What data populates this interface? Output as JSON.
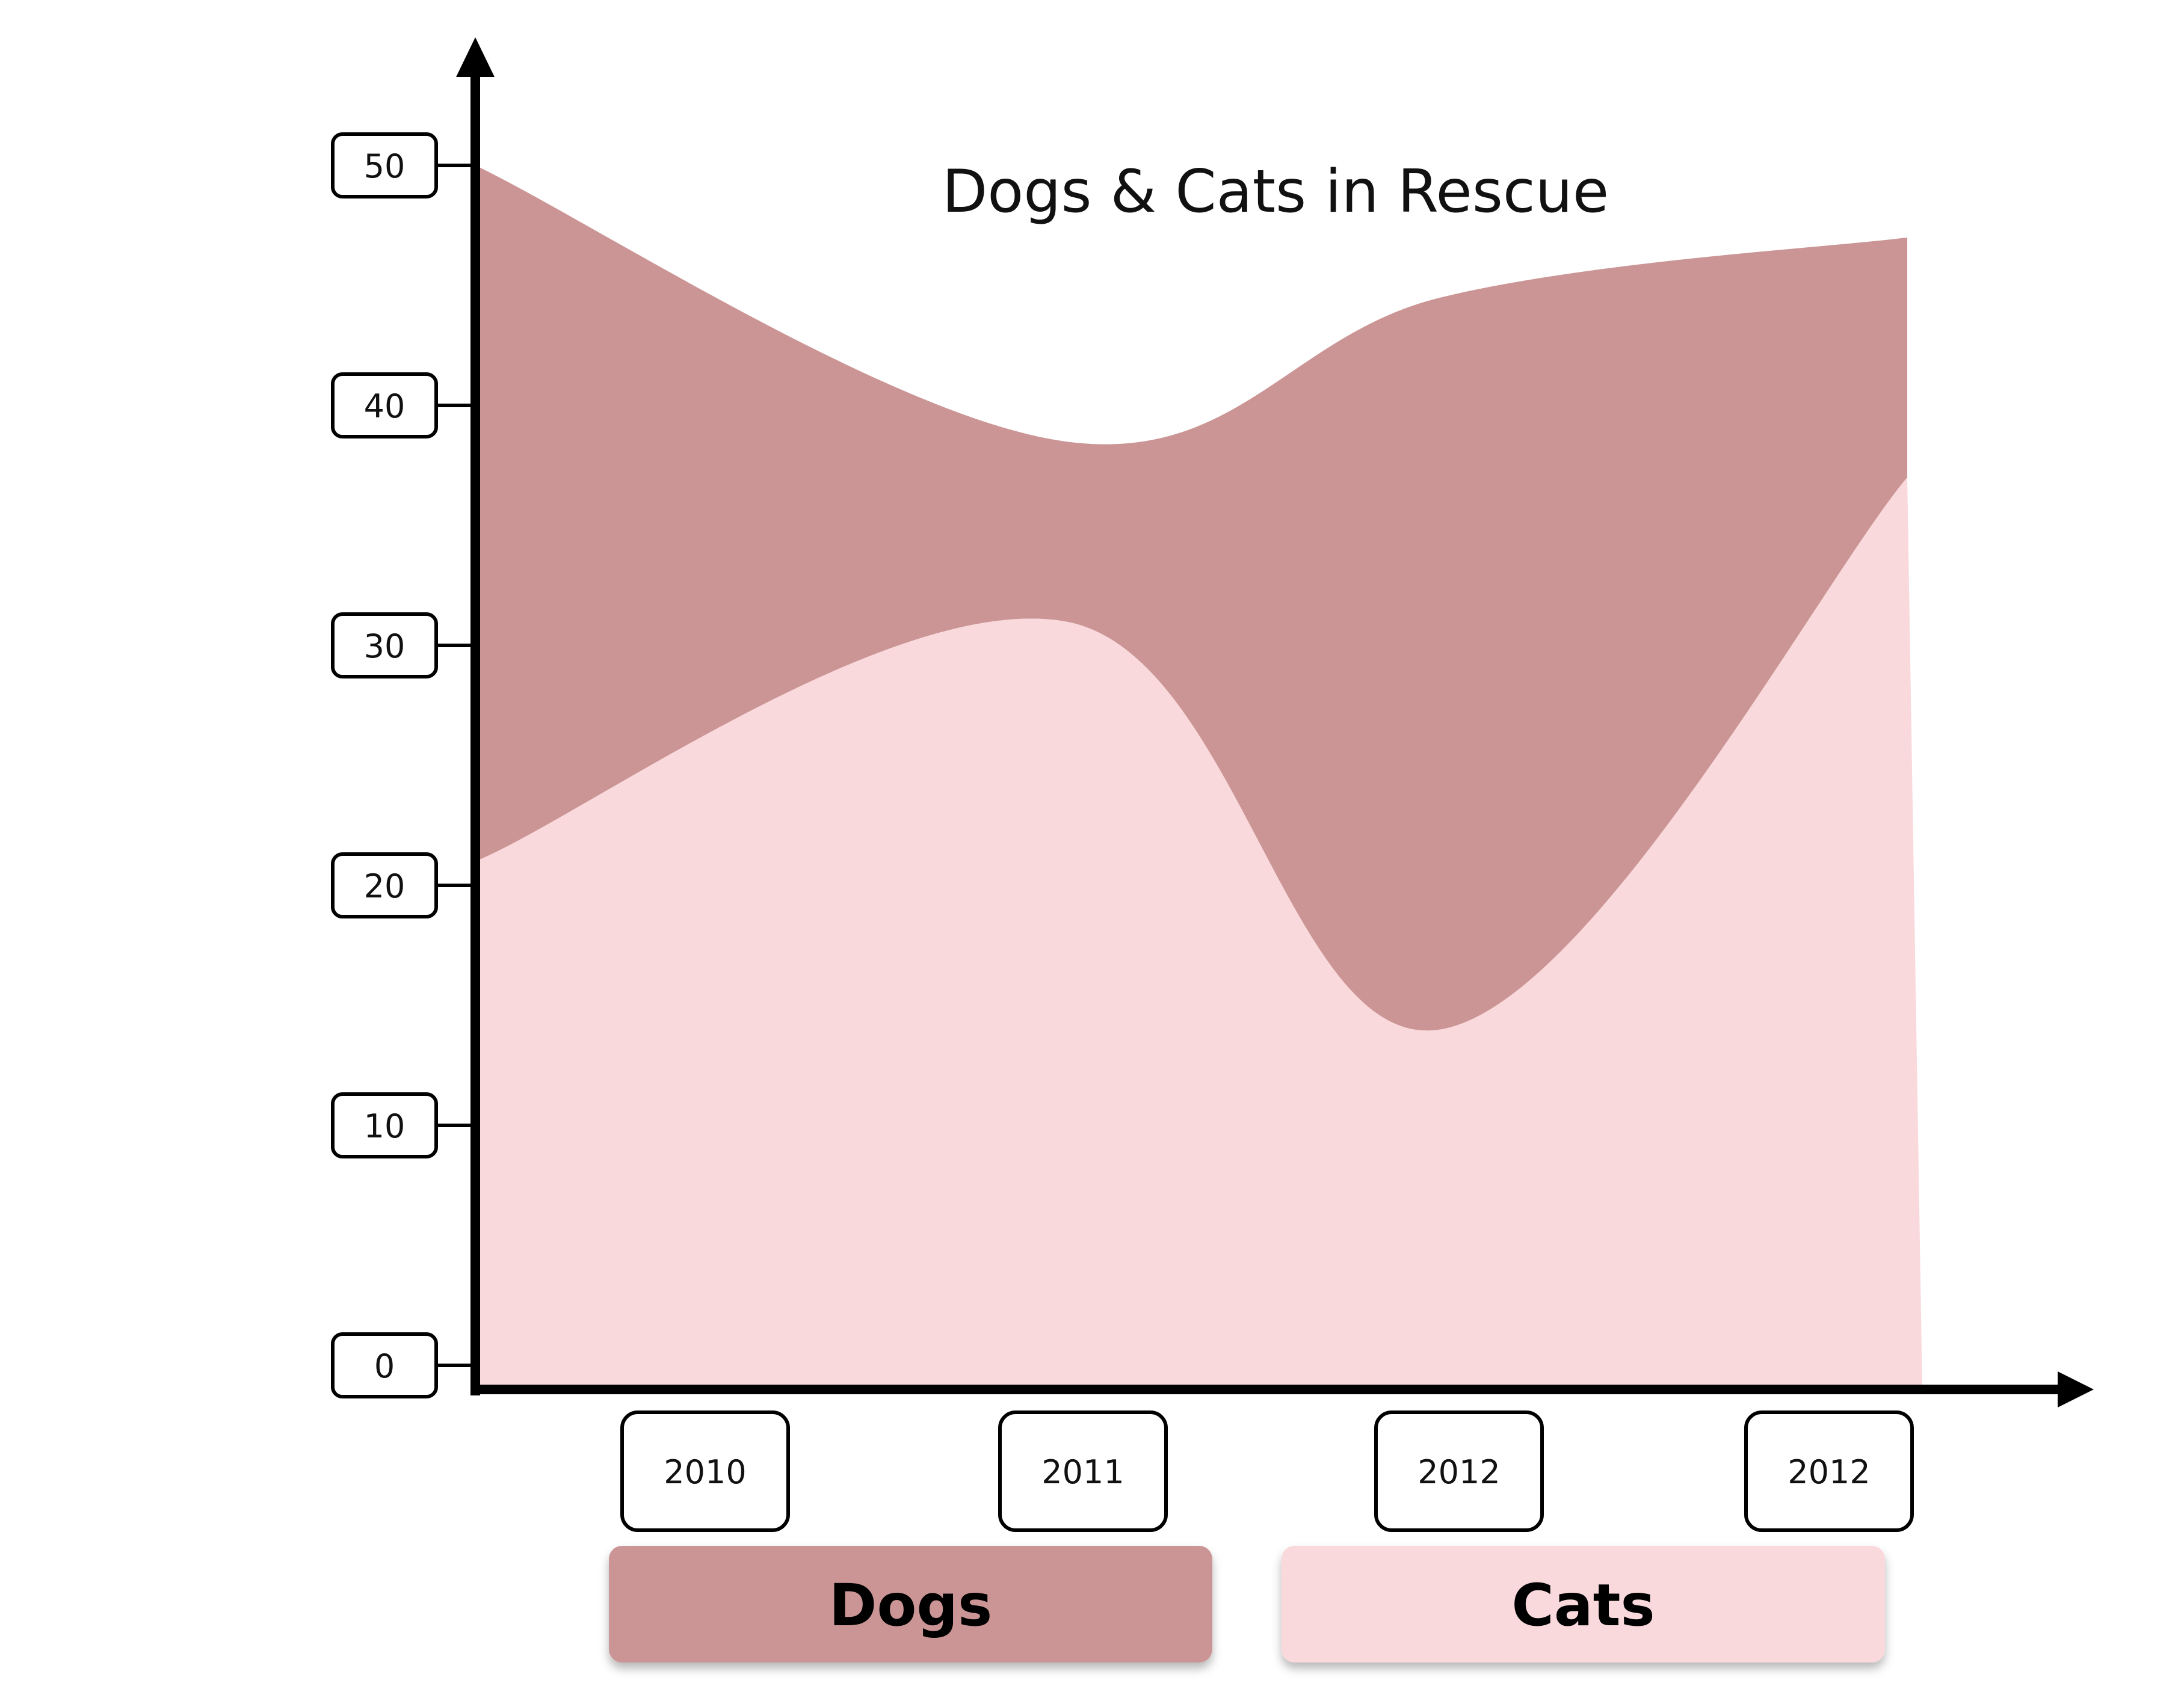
{
  "chart_data": {
    "type": "area",
    "stacked": true,
    "title": "Dogs & Cats in Rescue",
    "xlabel": "",
    "ylabel": "",
    "categories": [
      "2010",
      "2011",
      "2012",
      "2012"
    ],
    "y_ticks": [
      "0",
      "10",
      "20",
      "30",
      "40",
      "50"
    ],
    "ylim": [
      0,
      50
    ],
    "grid": false,
    "legend_position": "bottom",
    "series": [
      {
        "name": "Cats",
        "color": "#F9D9DC",
        "values": [
          21,
          31,
          14,
          37
        ]
      },
      {
        "name": "Dogs",
        "color": "#CC9595",
        "values": [
          29,
          7.5,
          30.5,
          10
        ]
      }
    ],
    "stack_totals": [
      50,
      38.5,
      44.5,
      47
    ]
  },
  "legend": {
    "items": [
      {
        "label": "Dogs",
        "color": "#CC9595"
      },
      {
        "label": "Cats",
        "color": "#F9D9DC"
      }
    ]
  }
}
